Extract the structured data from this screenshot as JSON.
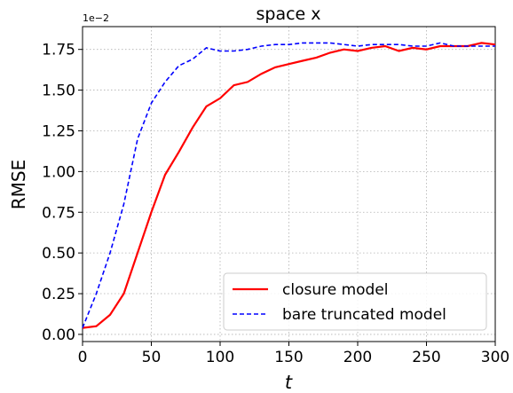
{
  "chart_data": {
    "type": "line",
    "title": "space x",
    "xlabel": "t",
    "ylabel": "RMSE",
    "y_offset_text": "1e−2",
    "x": [
      0,
      10,
      20,
      30,
      40,
      50,
      60,
      70,
      80,
      90,
      100,
      110,
      120,
      130,
      140,
      150,
      160,
      170,
      180,
      190,
      200,
      210,
      220,
      230,
      240,
      250,
      260,
      270,
      280,
      290,
      300
    ],
    "series": [
      {
        "name": "closure model",
        "color": "#ff0000",
        "dash": "solid",
        "values": [
          0.04,
          0.05,
          0.12,
          0.25,
          0.5,
          0.75,
          0.98,
          1.12,
          1.27,
          1.4,
          1.45,
          1.53,
          1.55,
          1.6,
          1.64,
          1.66,
          1.68,
          1.7,
          1.73,
          1.75,
          1.74,
          1.76,
          1.77,
          1.74,
          1.76,
          1.75,
          1.77,
          1.77,
          1.77,
          1.79,
          1.78
        ]
      },
      {
        "name": "bare truncated model",
        "color": "#0000ff",
        "dash": "dashed",
        "values": [
          0.04,
          0.25,
          0.5,
          0.8,
          1.2,
          1.42,
          1.55,
          1.65,
          1.69,
          1.76,
          1.74,
          1.74,
          1.75,
          1.77,
          1.78,
          1.78,
          1.79,
          1.79,
          1.79,
          1.78,
          1.77,
          1.78,
          1.78,
          1.78,
          1.77,
          1.77,
          1.79,
          1.77,
          1.77,
          1.77,
          1.77
        ]
      }
    ],
    "xlim": [
      0,
      300
    ],
    "xticks": [
      0,
      50,
      100,
      150,
      200,
      250,
      300
    ],
    "ylim": [
      -0.044,
      1.89
    ],
    "yticks": [
      {
        "value": 0,
        "label": "0.00"
      },
      {
        "value": 0.25,
        "label": "0.25"
      },
      {
        "value": 0.5,
        "label": "0.50"
      },
      {
        "value": 0.75,
        "label": "0.75"
      },
      {
        "value": 1,
        "label": "1.00"
      },
      {
        "value": 1.25,
        "label": "1.25"
      },
      {
        "value": 1.5,
        "label": "1.50"
      },
      {
        "value": 1.75,
        "label": "1.75"
      }
    ],
    "grid": true,
    "legend": "lower right"
  }
}
